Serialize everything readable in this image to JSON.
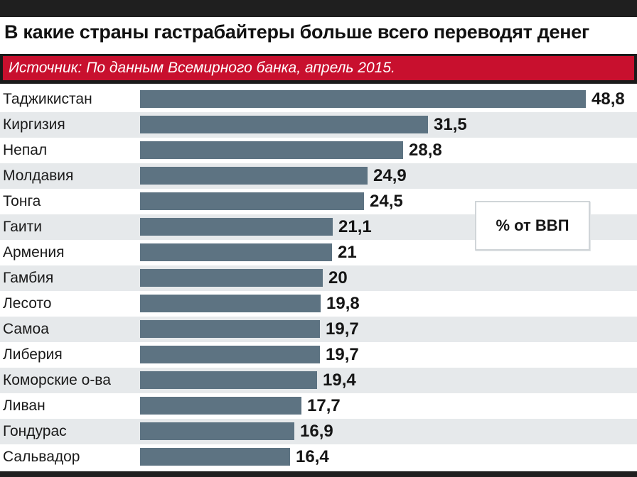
{
  "title": "В какие страны гастрабайтеры больше всего переводят денег",
  "source": "Источник: По данным Всемирного банка, апрель 2015.",
  "unit_label": "% от ВВП",
  "colors": {
    "bar": "#5d7382",
    "source_band": "#c8102e",
    "alt_row": "#e6e9eb",
    "frame": "#1f1f1f"
  },
  "chart_data": {
    "type": "bar",
    "orientation": "horizontal",
    "title": "В какие страны гастрабайтеры больше всего переводят денег",
    "categories": [
      "Таджикистан",
      "Киргизия",
      "Непал",
      "Молдавия",
      "Тонга",
      "Гаити",
      "Армения",
      "Гамбия",
      "Лесото",
      "Самоа",
      "Либерия",
      "Коморские о-ва",
      "Ливан",
      "Гондурас",
      "Сальвадор"
    ],
    "values": [
      48.8,
      31.5,
      28.8,
      24.9,
      24.5,
      21.1,
      21,
      20,
      19.8,
      19.7,
      19.7,
      19.4,
      17.7,
      16.9,
      16.4
    ],
    "value_labels": [
      "48,8",
      "31,5",
      "28,8",
      "24,9",
      "24,5",
      "21,1",
      "21",
      "20",
      "19,8",
      "19,7",
      "19,7",
      "19,4",
      "17,7",
      "16,9",
      "16,4"
    ],
    "xlabel": "",
    "ylabel": "% от ВВП",
    "grid": false,
    "legend": "none"
  }
}
